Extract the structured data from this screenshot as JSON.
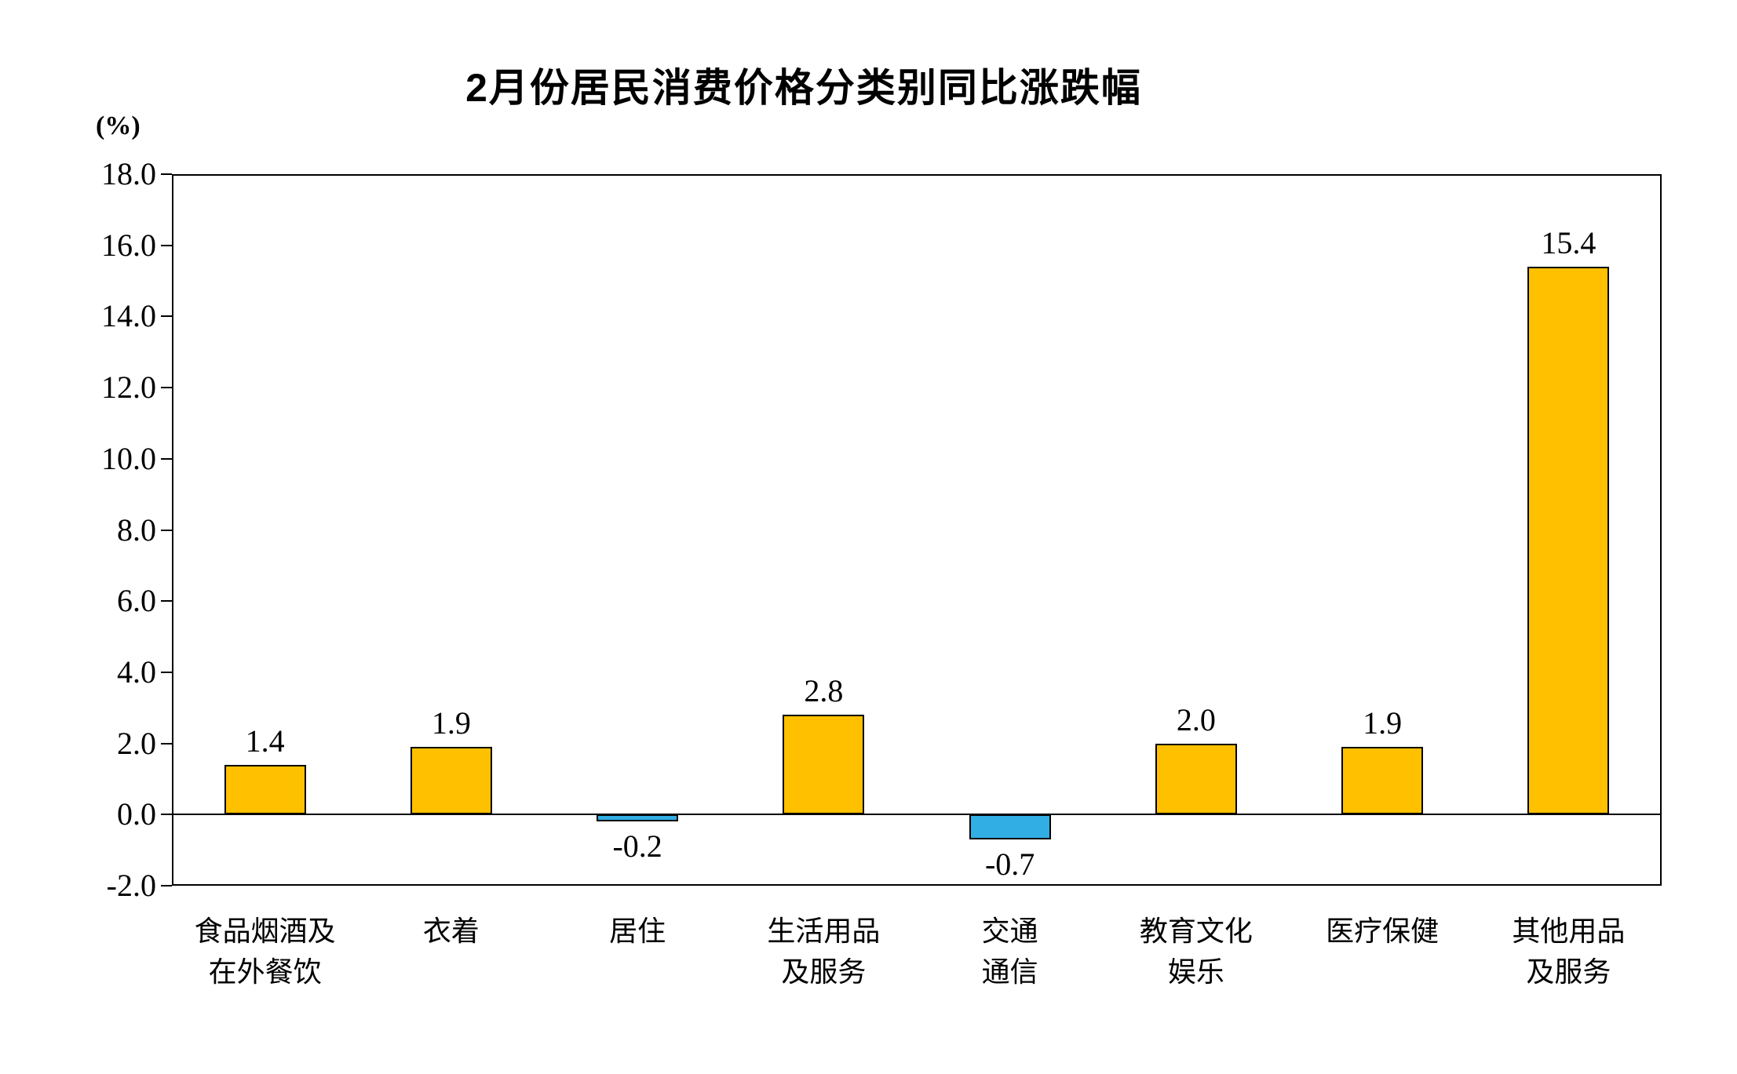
{
  "page": {
    "background_color": "#ffffff"
  },
  "chart_data": {
    "type": "bar",
    "title": "2月份居民消费价格分类别同比涨跌幅",
    "unit_label": "(%)",
    "categories": [
      "食品烟酒及\n在外餐饮",
      "衣着",
      "居住",
      "生活用品\n及服务",
      "交通\n通信",
      "教育文化\n娱乐",
      "医疗保健",
      "其他用品\n及服务"
    ],
    "values": [
      1.4,
      1.9,
      -0.2,
      2.8,
      -0.7,
      2.0,
      1.9,
      15.4
    ],
    "value_labels": [
      "1.4",
      "1.9",
      "-0.2",
      "2.8",
      "-0.7",
      "2.0",
      "1.9",
      "15.4"
    ],
    "ylim": [
      -2.0,
      18.0
    ],
    "ytick_step": 2.0,
    "ytick_labels": [
      "18.0",
      "16.0",
      "14.0",
      "12.0",
      "10.0",
      "8.0",
      "6.0",
      "4.0",
      "2.0",
      "0.0",
      "-2.0"
    ],
    "xlabel": "",
    "ylabel": "(%)",
    "grid": false,
    "legend": null,
    "colors": {
      "bar_positive": "#FFC000",
      "bar_negative": "#31AEE3",
      "bar_border": "#000000",
      "axis": "#000000",
      "text": "#000000"
    }
  }
}
